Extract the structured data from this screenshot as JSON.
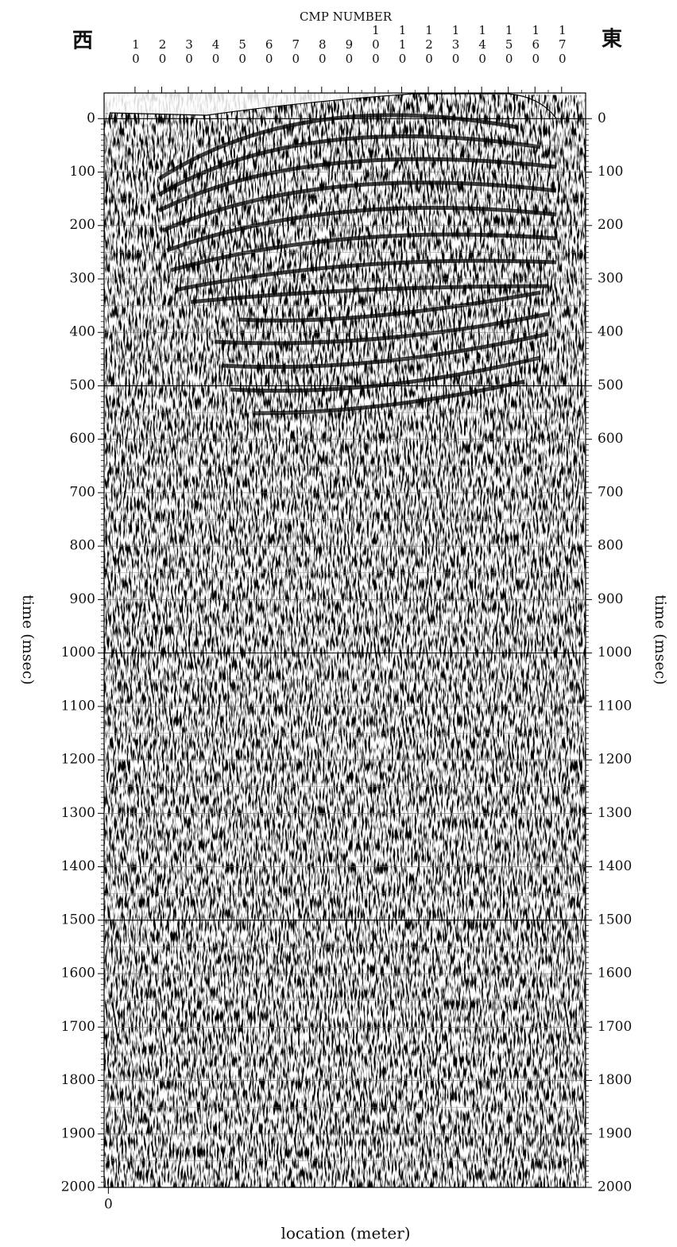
{
  "chart_data": {
    "type": "seismic",
    "title": "CMP NUMBER",
    "x2_label": "location (meter)",
    "ylabel": "time (msec)",
    "annotations": [
      "西",
      "東"
    ],
    "xlim": [
      -1.6,
      179
    ],
    "xticks": [
      10,
      20,
      30,
      40,
      50,
      60,
      70,
      80,
      90,
      100,
      110,
      120,
      130,
      140,
      150,
      160,
      170
    ],
    "x2lim": [
      -1.6,
      179
    ],
    "x2ticks": [
      0
    ],
    "ylim": [
      -48,
      2000
    ],
    "yticks": [
      0,
      100,
      200,
      300,
      400,
      500,
      600,
      700,
      800,
      900,
      1000,
      1100,
      1200,
      1300,
      1400,
      1500,
      1600,
      1700,
      1800,
      1900,
      2000
    ],
    "grid": true
  }
}
